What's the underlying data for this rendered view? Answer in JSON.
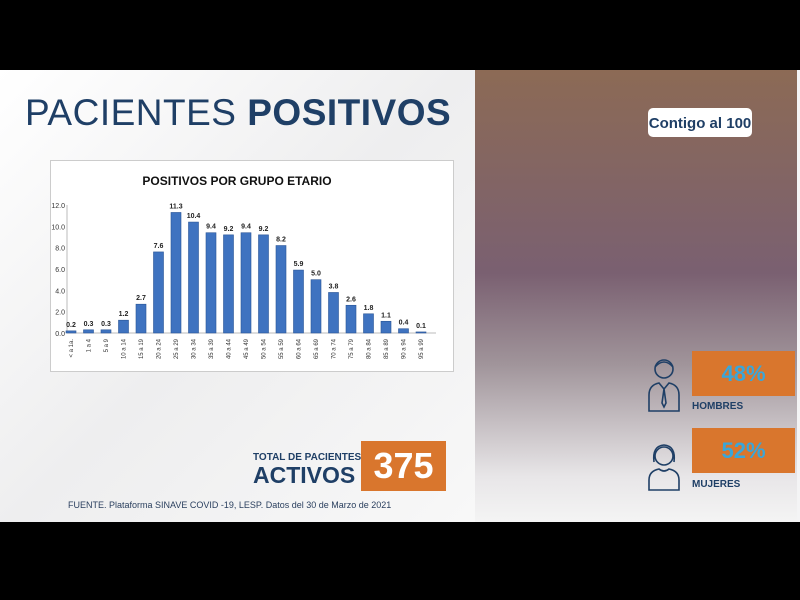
{
  "title": {
    "light": "PACIENTES ",
    "bold": "POSITIVOS"
  },
  "chart_data": {
    "type": "bar",
    "title": "POSITIVOS POR GRUPO ETARIO",
    "categories": [
      "< a 1a.",
      "1 a 4",
      "5 a 9",
      "10 a 14",
      "15 a 19",
      "20 a 24",
      "25 a 29",
      "30 a 34",
      "35 a 39",
      "40 a 44",
      "45 a 49",
      "50 a 54",
      "55 a 59",
      "60 a 64",
      "65 a 69",
      "70 a 74",
      "75 a 79",
      "80 a 84",
      "85 a 89",
      "90 a 94",
      "95 a 99"
    ],
    "values": [
      0.2,
      0.3,
      0.3,
      1.2,
      2.7,
      7.6,
      11.3,
      10.4,
      9.4,
      9.2,
      9.4,
      9.2,
      8.2,
      5.9,
      5.0,
      3.8,
      2.6,
      1.8,
      1.1,
      0.4,
      0.1
    ],
    "yticks": [
      "0.0",
      "2.0",
      "4.0",
      "6.0",
      "8.0",
      "10.0",
      "12.0"
    ],
    "ylim": [
      0,
      12
    ],
    "grid": false,
    "color": "#3f73c0"
  },
  "total": {
    "label_small": "TOTAL DE PACIENTES",
    "label_big": "ACTIVOS",
    "value": "375"
  },
  "footer": "FUENTE. Plataforma SINAVE COVID -19, LESP. Datos del 30 de Marzo de 2021",
  "logo": "Contigo al 100",
  "gender": {
    "men": {
      "value": "48%",
      "label": "HOMBRES"
    },
    "women": {
      "value": "52%",
      "label": "MUJERES"
    }
  },
  "colors": {
    "navy": "#1f3f66",
    "orange": "#d9762d",
    "cyan": "#3aa6d9"
  }
}
